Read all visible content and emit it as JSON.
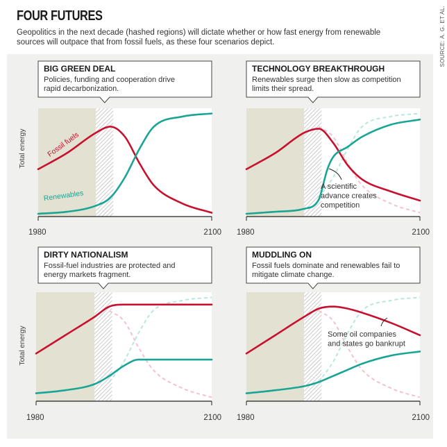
{
  "title": "FOUR FUTURES",
  "subtitle": "Geopolitics in the next decade (hashed regions) will dictate whether or how fast energy from renewable sources will outpace that from fossil fuels, as these four scenarios depict.",
  "source": "SOURCE: A. G. ET AL.",
  "colors": {
    "fossil": "#c8102e",
    "renewables": "#19a595",
    "fossil_ghost": "#f4c2cc",
    "renewables_ghost": "#b9e6df",
    "history_fill": "#e3e2d2",
    "box_border": "#444444"
  },
  "chart_data": [
    {
      "type": "line",
      "id": "big-green-deal",
      "title": "BIG GREEN DEAL",
      "description": "Policies, funding and cooperation drive rapid decarbonization.",
      "ylabel": "Total energy",
      "xlim": [
        1980,
        2100
      ],
      "x_tick_labels": [
        "1980",
        "2100"
      ],
      "shaded_period": [
        1980,
        2020
      ],
      "hashed_period": [
        2020,
        2032
      ],
      "series": [
        {
          "name": "Fossil fuels",
          "x": [
            1980,
            2000,
            2020,
            2030,
            2040,
            2050,
            2060,
            2080,
            2100
          ],
          "y": [
            0.44,
            0.6,
            0.8,
            0.86,
            0.76,
            0.5,
            0.28,
            0.1,
            0.01
          ]
        },
        {
          "name": "Renewables",
          "x": [
            1980,
            2000,
            2020,
            2030,
            2040,
            2050,
            2060,
            2080,
            2100
          ],
          "y": [
            0.0,
            0.02,
            0.08,
            0.16,
            0.36,
            0.64,
            0.86,
            0.96,
            0.99
          ]
        }
      ],
      "ghost_series": [],
      "annotations": []
    },
    {
      "type": "line",
      "id": "technology-breakthrough",
      "title": "TECHNOLOGY BREAKTHROUGH",
      "description": "Renewables surge then slow as competition limits their spread.",
      "ylabel": "",
      "xlim": [
        1980,
        2100
      ],
      "x_tick_labels": [
        "1980",
        "2100"
      ],
      "shaded_period": [
        1980,
        2020
      ],
      "hashed_period": [
        2020,
        2032
      ],
      "series": [
        {
          "name": "",
          "x": [
            1980,
            2000,
            2020,
            2030,
            2040,
            2050,
            2060,
            2080,
            2100
          ],
          "y": [
            0.44,
            0.6,
            0.8,
            0.84,
            0.7,
            0.48,
            0.34,
            0.22,
            0.13
          ]
        },
        {
          "name": "",
          "x": [
            1980,
            2000,
            2020,
            2030,
            2036,
            2040,
            2050,
            2060,
            2080,
            2100
          ],
          "y": [
            0.0,
            0.02,
            0.05,
            0.14,
            0.44,
            0.56,
            0.66,
            0.76,
            0.88,
            0.93
          ]
        }
      ],
      "ghost_series": [
        {
          "x": [
            2030,
            2040,
            2050,
            2060,
            2080,
            2100
          ],
          "y": [
            0.86,
            0.76,
            0.5,
            0.28,
            0.1,
            0.01
          ]
        },
        {
          "x": [
            2030,
            2040,
            2050,
            2060,
            2080,
            2100
          ],
          "y": [
            0.16,
            0.36,
            0.64,
            0.86,
            0.96,
            0.99
          ]
        }
      ],
      "annotations": [
        {
          "text": "A scientific advance creates competition",
          "lines": [
            "A scientific",
            "advance creates",
            "competition"
          ]
        }
      ]
    },
    {
      "type": "line",
      "id": "dirty-nationalism",
      "title": "DIRTY NATIONALISM",
      "description": "Fossil-fuel industries are protected and energy markets fragment.",
      "ylabel": "Total energy",
      "xlim": [
        1980,
        2100
      ],
      "x_tick_labels": [
        "1980",
        "2100"
      ],
      "shaded_period": [
        1980,
        2020
      ],
      "hashed_period": [
        2020,
        2032
      ],
      "series": [
        {
          "name": "",
          "x": [
            1980,
            2000,
            2020,
            2030,
            2040,
            2060,
            2080,
            2100
          ],
          "y": [
            0.44,
            0.62,
            0.8,
            0.9,
            0.92,
            0.92,
            0.92,
            0.92
          ]
        },
        {
          "name": "",
          "x": [
            1980,
            2000,
            2020,
            2030,
            2040,
            2050,
            2060,
            2080,
            2100
          ],
          "y": [
            0.05,
            0.08,
            0.14,
            0.22,
            0.32,
            0.38,
            0.38,
            0.38,
            0.38
          ]
        }
      ],
      "ghost_series": [
        {
          "x": [
            2030,
            2040,
            2050,
            2060,
            2080,
            2100
          ],
          "y": [
            0.86,
            0.76,
            0.5,
            0.28,
            0.1,
            0.01
          ]
        },
        {
          "x": [
            2030,
            2040,
            2050,
            2060,
            2080,
            2100
          ],
          "y": [
            0.16,
            0.36,
            0.64,
            0.86,
            0.96,
            0.99
          ]
        }
      ],
      "annotations": []
    },
    {
      "type": "line",
      "id": "muddling-on",
      "title": "MUDDLING ON",
      "description": "Fossil fuels dominate and renewables fail to mitigate climate change.",
      "ylabel": "",
      "xlim": [
        1980,
        2100
      ],
      "x_tick_labels": [
        "1980",
        "2100"
      ],
      "shaded_period": [
        1980,
        2020
      ],
      "hashed_period": [
        2020,
        2032
      ],
      "series": [
        {
          "name": "",
          "x": [
            1980,
            2000,
            2020,
            2030,
            2040,
            2050,
            2060,
            2080,
            2100
          ],
          "y": [
            0.44,
            0.62,
            0.8,
            0.88,
            0.9,
            0.88,
            0.84,
            0.74,
            0.62
          ]
        },
        {
          "name": "",
          "x": [
            1980,
            2000,
            2020,
            2030,
            2040,
            2050,
            2060,
            2080,
            2100
          ],
          "y": [
            0.05,
            0.08,
            0.12,
            0.16,
            0.22,
            0.28,
            0.34,
            0.42,
            0.46
          ]
        }
      ],
      "ghost_series": [
        {
          "x": [
            2030,
            2040,
            2050,
            2060,
            2080,
            2100
          ],
          "y": [
            0.86,
            0.76,
            0.5,
            0.28,
            0.1,
            0.01
          ]
        },
        {
          "x": [
            2030,
            2040,
            2050,
            2060,
            2080,
            2100
          ],
          "y": [
            0.16,
            0.36,
            0.64,
            0.86,
            0.96,
            0.99
          ]
        }
      ],
      "annotations": [
        {
          "text": "Some oil companies and states go bankrupt",
          "lines": [
            "Some oil companies",
            "and states go bankrupt"
          ]
        }
      ]
    }
  ]
}
